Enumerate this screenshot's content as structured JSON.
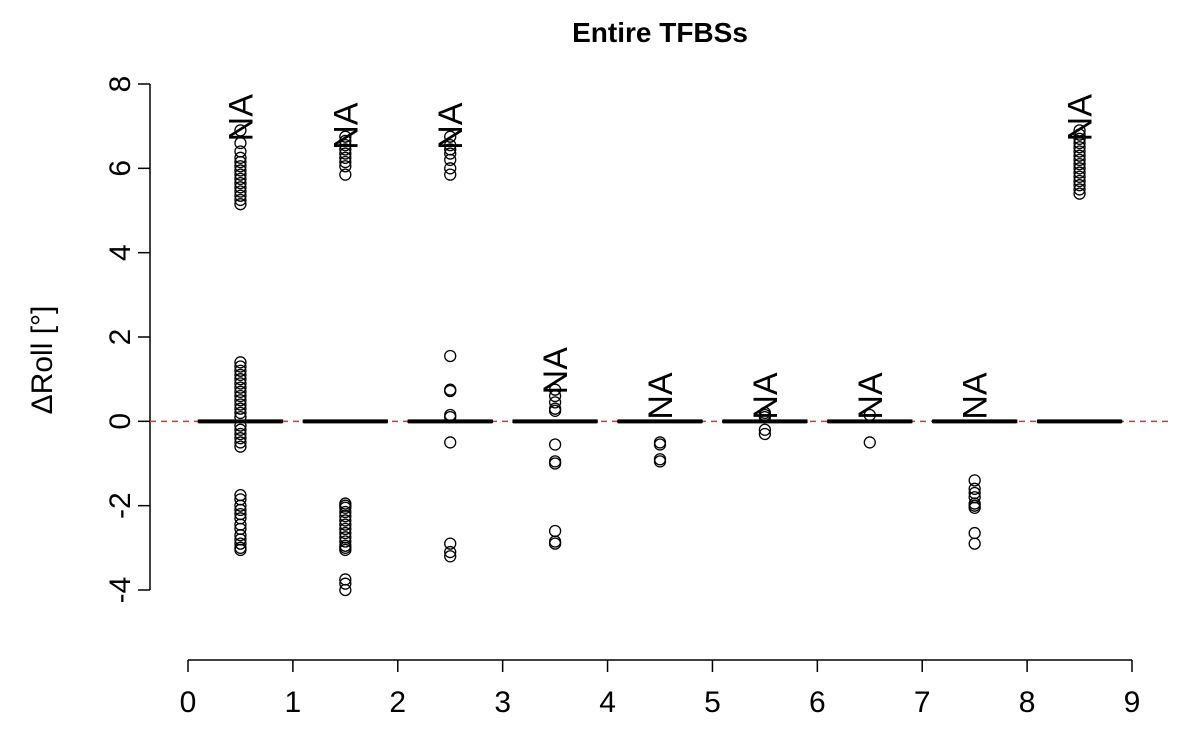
{
  "chart_data": {
    "type": "boxplot",
    "title": "Entire TFBSs",
    "ylabel": "ΔRoll [°]",
    "xlabel": "",
    "xlim": [
      0,
      9
    ],
    "ylim": [
      -4,
      8
    ],
    "xticks": [
      "0",
      "1",
      "2",
      "3",
      "4",
      "5",
      "6",
      "7",
      "8",
      "9"
    ],
    "yticks": [
      "-4",
      "-2",
      "0",
      "2",
      "4",
      "6",
      "8"
    ],
    "reference_line": {
      "y": 0,
      "color": "#e03030",
      "style": "dashed"
    },
    "box_color": "#000000",
    "na_text": "NA",
    "groups": [
      {
        "x": 0.5,
        "median": 0,
        "q1": 0,
        "q3": 0,
        "na": true,
        "na_y": 7.2,
        "outliers": [
          6.9,
          6.6,
          6.4,
          6.25,
          6.15,
          6.05,
          5.95,
          5.85,
          5.75,
          5.65,
          5.55,
          5.45,
          5.35,
          5.25,
          5.15,
          1.4,
          1.3,
          1.2,
          1.1,
          1.0,
          0.9,
          0.8,
          0.7,
          0.6,
          0.5,
          0.4,
          0.3,
          0.2,
          0.1,
          -0.1,
          -0.2,
          -0.3,
          -0.4,
          -0.5,
          -0.6,
          -1.75,
          -1.85,
          -2.0,
          -2.1,
          -2.2,
          -2.3,
          -2.45,
          -2.55,
          -2.7,
          -2.8,
          -2.9,
          -3.0,
          -3.05
        ]
      },
      {
        "x": 1.5,
        "median": 0,
        "q1": 0,
        "q3": 0,
        "na": true,
        "na_y": 7.0,
        "outliers": [
          6.75,
          6.65,
          6.55,
          6.45,
          6.35,
          6.25,
          6.15,
          6.05,
          5.85,
          -1.95,
          -2.0,
          -2.05,
          -2.15,
          -2.25,
          -2.35,
          -2.45,
          -2.55,
          -2.65,
          -2.75,
          -2.85,
          -2.95,
          -3.0,
          -3.05,
          -3.75,
          -3.85,
          -4.0
        ]
      },
      {
        "x": 2.5,
        "median": 0,
        "q1": 0,
        "q3": 0,
        "na": true,
        "na_y": 7.0,
        "outliers": [
          6.75,
          6.55,
          6.45,
          6.35,
          6.2,
          6.0,
          5.85,
          1.55,
          0.75,
          0.72,
          0.15,
          0.1,
          -0.5,
          -2.9,
          -3.1,
          -3.2
        ]
      },
      {
        "x": 3.5,
        "median": 0,
        "q1": 0,
        "q3": 0,
        "na": true,
        "na_y": 1.2,
        "outliers": [
          0.75,
          0.6,
          0.45,
          0.3,
          0.25,
          -0.55,
          -0.95,
          -1.0,
          -2.6,
          -2.85,
          -2.9
        ]
      },
      {
        "x": 4.5,
        "median": 0,
        "q1": 0,
        "q3": 0,
        "na": true,
        "na_y": 0.6,
        "outliers": [
          -0.5,
          -0.55,
          -0.9,
          -0.95
        ]
      },
      {
        "x": 5.5,
        "median": 0,
        "q1": 0,
        "q3": 0,
        "na": true,
        "na_y": 0.6,
        "outliers": [
          0.2,
          0.15,
          0.1,
          -0.2,
          -0.3
        ]
      },
      {
        "x": 6.5,
        "median": 0,
        "q1": 0,
        "q3": 0,
        "na": true,
        "na_y": 0.6,
        "outliers": [
          0.15,
          -0.5
        ]
      },
      {
        "x": 7.5,
        "median": 0,
        "q1": 0,
        "q3": 0,
        "na": true,
        "na_y": 0.6,
        "outliers": [
          -1.4,
          -1.6,
          -1.7,
          -1.8,
          -1.95,
          -2.0,
          -2.05,
          -2.65,
          -2.9
        ]
      },
      {
        "x": 8.5,
        "median": 0,
        "q1": 0,
        "q3": 0,
        "na": true,
        "na_y": 7.2,
        "outliers": [
          6.9,
          6.8,
          6.7,
          6.6,
          6.5,
          6.4,
          6.3,
          6.2,
          6.1,
          6.0,
          5.9,
          5.8,
          5.7,
          5.6,
          5.5,
          5.4
        ]
      }
    ]
  }
}
